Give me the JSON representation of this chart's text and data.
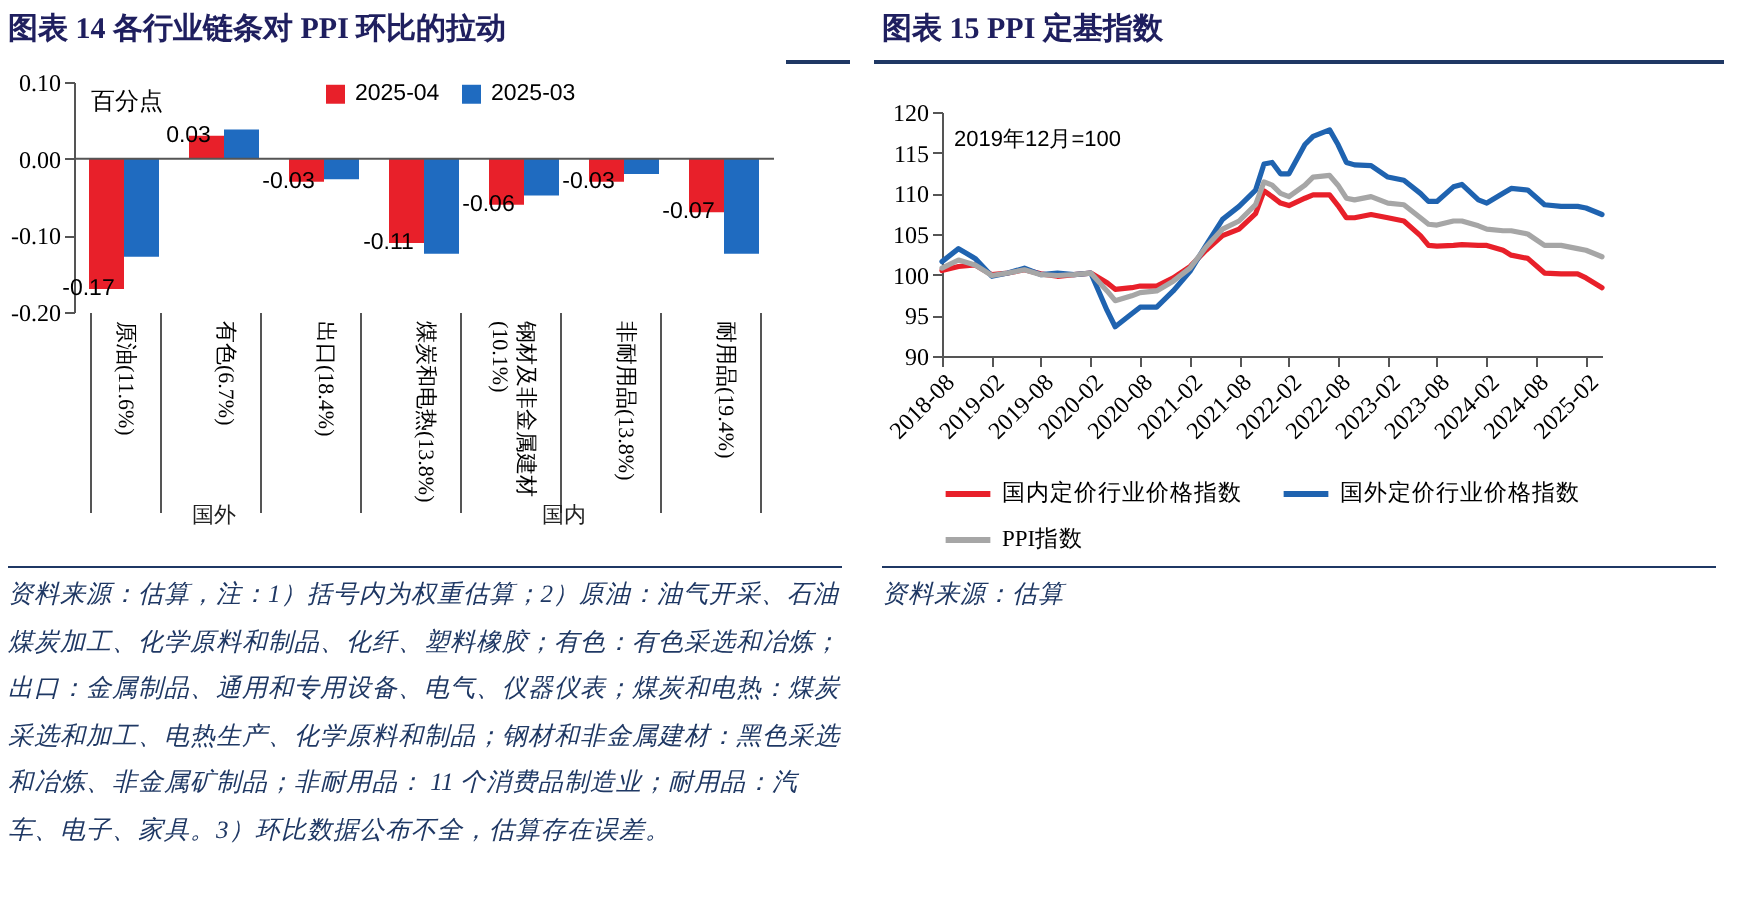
{
  "chart_data": [
    {
      "type": "bar",
      "title": "图表 14   各行业链条对 PPI 环比的拉动",
      "ylabel": "百分点",
      "categories": [
        "原油(11.6%)",
        "有色(6.7%)",
        "出口(18.4%)",
        "煤炭和电热(13.8%)",
        "钢材及非金属建材(10.1%)",
        "非耐用品(13.8%)",
        "耐用品(19.4%)"
      ],
      "series": [
        {
          "name": "2025-04",
          "color": "#e8202a",
          "values": [
            -0.17,
            0.03,
            -0.03,
            -0.11,
            -0.06,
            -0.03,
            -0.07
          ],
          "value_labels": [
            "-0.17",
            "0.03",
            "-0.03",
            "-0.11",
            "-0.06",
            "-0.03",
            "-0.07"
          ]
        },
        {
          "name": "2025-03",
          "color": "#1f6bc0",
          "values": [
            -0.128,
            0.038,
            -0.027,
            -0.124,
            -0.048,
            -0.02,
            -0.124
          ]
        }
      ],
      "ylim": [
        -0.2,
        0.1
      ],
      "yticks": [
        {
          "value": -0.2,
          "label": "-0.20"
        },
        {
          "value": -0.1,
          "label": "-0.10"
        },
        {
          "value": 0,
          "label": "0.00"
        },
        {
          "value": 0.1,
          "label": "0.10"
        }
      ],
      "legend": "top",
      "annotations": [
        "国外",
        "国内",
        "资料来源：估算，注：1）括号内为权重估算；2）原油：油气开采、石油煤炭加工、化学原料和制品、化纤、塑料橡胶；有色：有色采选和冶炼；出口：金属制品、通用和专用设备、电气、仪器仪表；煤炭和电热：煤炭采选和加工、电热生产、化学原料和制品；钢材和非金属建材：黑色采选和冶炼、非金属矿制品；非耐用品： 11 个消费品制造业；耐用品：汽车、电子、家具。3）环比数据公布不全，估算存在误差。"
      ]
    },
    {
      "type": "line",
      "title": "图表 15   PPI 定基指数",
      "x": [
        "2018-08",
        "2018-10",
        "2018-12",
        "2019-02",
        "2019-04",
        "2019-06",
        "2019-08",
        "2019-10",
        "2019-12",
        "2020-02",
        "2020-04",
        "2020-05",
        "2020-07",
        "2020-08",
        "2020-10",
        "2020-12",
        "2021-02",
        "2021-04",
        "2021-06",
        "2021-08",
        "2021-10",
        "2021-11",
        "2021-12",
        "2022-01",
        "2022-02",
        "2022-04",
        "2022-05",
        "2022-07",
        "2022-08",
        "2022-09",
        "2022-10",
        "2022-12",
        "2023-02",
        "2023-04",
        "2023-06",
        "2023-07",
        "2023-08",
        "2023-10",
        "2023-11",
        "2024-01",
        "2024-02",
        "2024-04",
        "2024-05",
        "2024-07",
        "2024-09",
        "2024-11",
        "2025-01",
        "2025-02",
        "2025-04"
      ],
      "series": [
        {
          "name": "国内定价行业价格指数",
          "color": "#e8202a",
          "values": [
            100.5,
            101,
            101.2,
            100,
            100.2,
            100.6,
            100.1,
            99.8,
            100,
            100.2,
            99,
            98.2,
            98.4,
            98.6,
            98.6,
            99.6,
            101,
            103,
            104.8,
            105.6,
            107.5,
            110.3,
            109.6,
            108.8,
            108.5,
            109.4,
            109.8,
            109.8,
            108.5,
            107,
            107,
            107.4,
            107,
            106.6,
            104.8,
            103.6,
            103.5,
            103.6,
            103.7,
            103.6,
            103.6,
            103,
            102.4,
            102,
            100.2,
            100.1,
            100.1,
            99.6,
            98.4
          ]
        },
        {
          "name": "国外定价行业价格指数",
          "color": "#1f63b0",
          "values": [
            101.6,
            103.2,
            102,
            99.8,
            100.2,
            100.8,
            100,
            100.2,
            100,
            100.2,
            95.6,
            93.6,
            95.2,
            96,
            96,
            98,
            100.4,
            103.6,
            106.8,
            108.4,
            110.4,
            113.6,
            113.8,
            112.4,
            112.4,
            116,
            117,
            117.8,
            116,
            113.8,
            113.5,
            113.4,
            112,
            111.6,
            110,
            109,
            109,
            110.8,
            111.1,
            109.2,
            108.8,
            110,
            110.6,
            110.4,
            108.6,
            108.4,
            108.4,
            108.2,
            107.4
          ]
        },
        {
          "name": "PPI指数",
          "color": "#a6a6a6",
          "values": [
            100.8,
            101.8,
            101.2,
            99.9,
            100.2,
            100.6,
            100,
            99.9,
            100,
            100.2,
            98,
            96.8,
            97.4,
            97.8,
            98,
            99.2,
            100.8,
            103.4,
            105.6,
            106.6,
            108.6,
            111.4,
            111,
            110,
            109.6,
            111,
            112,
            112.2,
            111,
            109.4,
            109.2,
            109.6,
            108.8,
            108.6,
            107,
            106.2,
            106.1,
            106.6,
            106.6,
            106,
            105.6,
            105.4,
            105.4,
            105,
            103.6,
            103.6,
            103.2,
            103,
            102.2
          ]
        }
      ],
      "xlim": [
        "2018-08",
        "2025-04"
      ],
      "xticks": [
        "2018-08",
        "2019-02",
        "2019-08",
        "2020-02",
        "2020-08",
        "2021-02",
        "2021-08",
        "2022-02",
        "2022-08",
        "2023-02",
        "2023-08",
        "2024-02",
        "2024-08",
        "2025-02"
      ],
      "ylim": [
        90,
        120
      ],
      "yticks": [
        90,
        95,
        100,
        105,
        110,
        115,
        120
      ],
      "legend": "bottom",
      "annotations": [
        "2019年12月=100",
        "资料来源：估算"
      ]
    }
  ]
}
